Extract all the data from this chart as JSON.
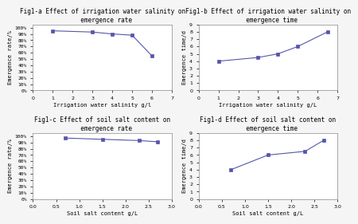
{
  "fig1a": {
    "title": "Fig1-a Effect of irrigation water salinity on\n  emergence rate",
    "xlabel": "Irrigation water salinity g/l",
    "ylabel": "Emergence rate/%",
    "x": [
      1,
      3,
      4,
      5,
      6
    ],
    "y": [
      95,
      93,
      90,
      88,
      55
    ],
    "ylim": [
      0,
      105
    ],
    "yticks": [
      0,
      10,
      20,
      30,
      40,
      50,
      60,
      70,
      80,
      90,
      100
    ],
    "ytick_labels": [
      "0%",
      "10%",
      "20%",
      "30%",
      "40%",
      "50%",
      "60%",
      "70%",
      "80%",
      "90%",
      "100%"
    ],
    "xlim": [
      0,
      7
    ],
    "xticks": [
      0,
      1,
      2,
      3,
      4,
      5,
      6,
      7
    ]
  },
  "fig1b": {
    "title": "Fig1-b Effect of irrigation water salinity on\n  emergence time",
    "xlabel": "Irrigation water salinity g/L",
    "ylabel": "Emergence time/d",
    "x": [
      1,
      3,
      4,
      5,
      6.5
    ],
    "y": [
      4,
      4.5,
      5,
      6,
      8
    ],
    "ylim": [
      0,
      9
    ],
    "yticks": [
      0,
      1,
      2,
      3,
      4,
      5,
      6,
      7,
      8,
      9
    ],
    "xlim": [
      0,
      7
    ],
    "xticks": [
      0,
      1,
      2,
      3,
      4,
      5,
      6,
      7
    ]
  },
  "fig1c": {
    "title": "Fig1-c Effect of soil salt content on\n  emergence rate",
    "xlabel": "Soil salt content g/L",
    "ylabel": "Emergence rate/%",
    "x": [
      0.7,
      1.5,
      2.3,
      2.7
    ],
    "y": [
      97,
      95,
      93,
      91
    ],
    "ylim": [
      0,
      105
    ],
    "yticks": [
      0,
      10,
      20,
      30,
      40,
      50,
      60,
      70,
      80,
      90,
      100
    ],
    "ytick_labels": [
      "0%",
      "10%",
      "20%",
      "30%",
      "40%",
      "50%",
      "60%",
      "70%",
      "80%",
      "90%",
      "100%"
    ],
    "xlim": [
      0,
      3
    ],
    "xticks": [
      0,
      0.5,
      1.0,
      1.5,
      2.0,
      2.5,
      3.0
    ]
  },
  "fig1d": {
    "title": "Fig1-d Effect of soil salt content on\n  emergence time",
    "xlabel": "Soil salt content g/L",
    "ylabel": "Emergence time/d",
    "x": [
      0.7,
      1.5,
      2.3,
      2.7
    ],
    "y": [
      4,
      6,
      6.5,
      8
    ],
    "ylim": [
      0,
      9
    ],
    "yticks": [
      0,
      1,
      2,
      3,
      4,
      5,
      6,
      7,
      8,
      9
    ],
    "xlim": [
      0,
      3
    ],
    "xticks": [
      0,
      0.5,
      1.0,
      1.5,
      2.0,
      2.5,
      3.0
    ]
  },
  "line_color": "#5555aa",
  "marker": "s",
  "markersize": 2.5,
  "linewidth": 0.8,
  "title_fontsize": 5.5,
  "label_fontsize": 5,
  "tick_fontsize": 4.5,
  "bg_color": "#f5f5f5",
  "subplot_bg": "#ffffff"
}
